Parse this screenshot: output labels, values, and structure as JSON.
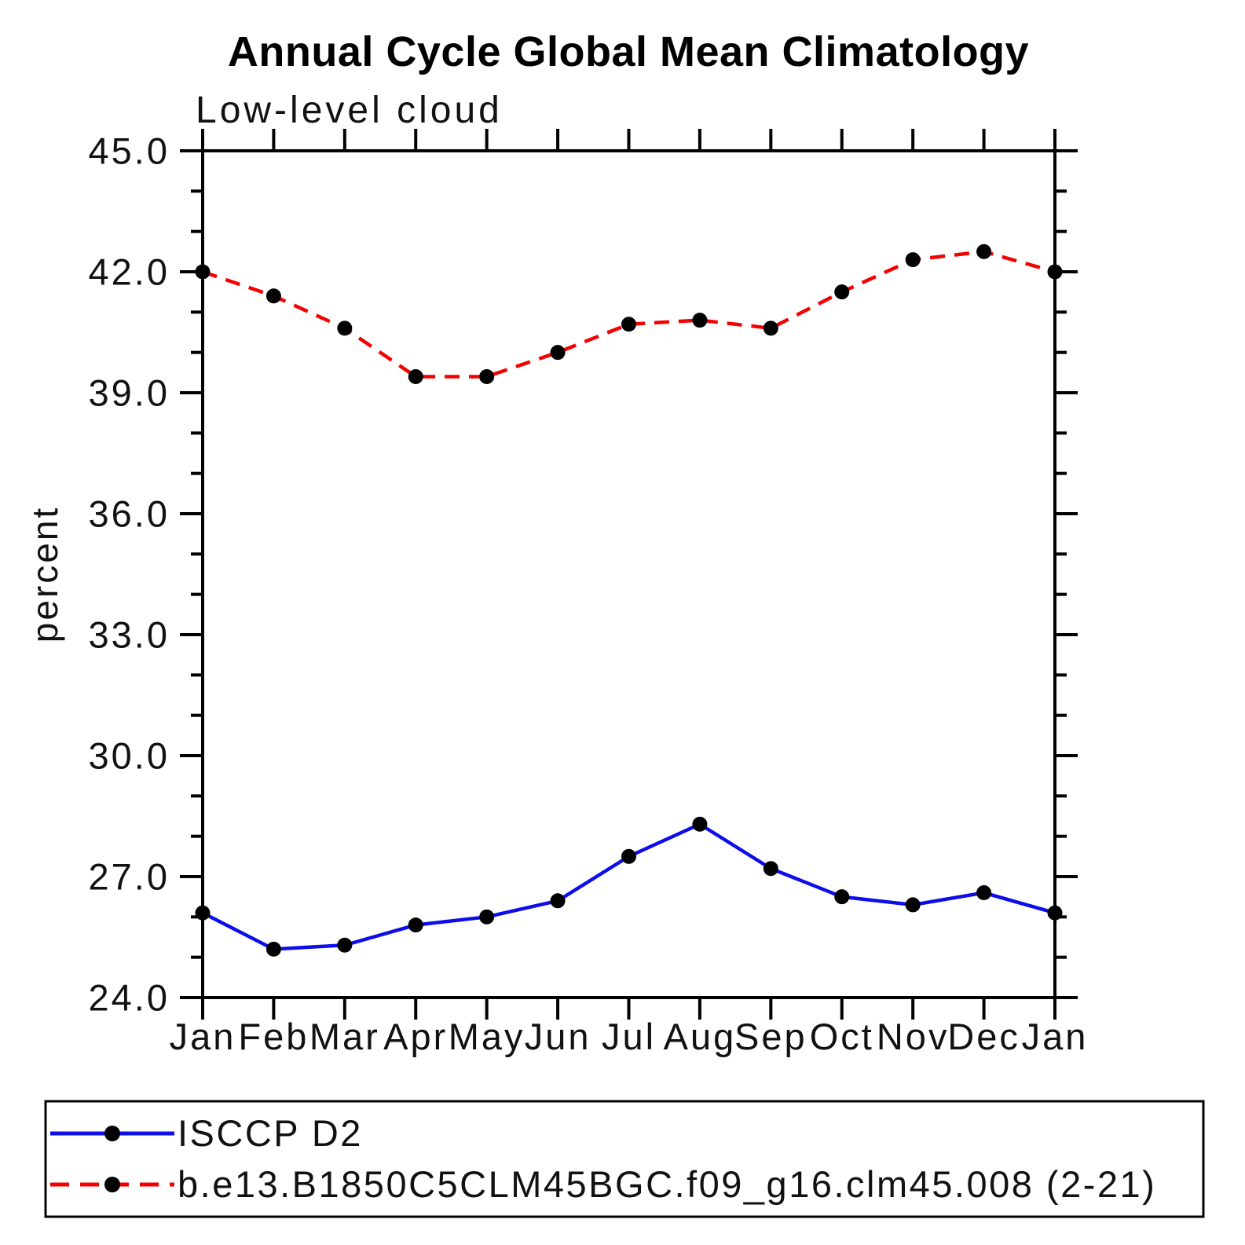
{
  "chart_data": {
    "type": "line",
    "title": "Annual Cycle Global Mean Climatology",
    "subtitle": "Low-level cloud",
    "ylabel": "percent",
    "xlabel": "",
    "x_categories": [
      "Jan",
      "Feb",
      "Mar",
      "Apr",
      "May",
      "Jun",
      "Jul",
      "Aug",
      "Sep",
      "Oct",
      "Nov",
      "Dec",
      "Jan"
    ],
    "ylim": [
      24.0,
      45.0
    ],
    "y_major_ticks": [
      24.0,
      27.0,
      30.0,
      33.0,
      36.0,
      39.0,
      42.0,
      45.0
    ],
    "y_major_tick_labels": [
      "24.0",
      "27.0",
      "30.0",
      "33.0",
      "36.0",
      "39.0",
      "42.0",
      "45.0"
    ],
    "y_minor_tick_interval": 1.0,
    "grid": false,
    "legend_position": "bottom-box",
    "marker": "filled-circle",
    "marker_color": "#000000",
    "axis_color": "#000000",
    "series": [
      {
        "name": "ISCCP D2",
        "color": "#0d0dea",
        "line_style": "solid",
        "values": [
          26.1,
          25.2,
          25.3,
          25.8,
          26.0,
          26.4,
          27.5,
          28.3,
          27.2,
          26.5,
          26.3,
          26.6,
          26.1
        ]
      },
      {
        "name": "b.e13.B1850C5CLM45BGC.f09_g16.clm45.008 (2-21)",
        "color": "#f40000",
        "line_style": "dashed",
        "values": [
          42.0,
          41.4,
          40.6,
          39.4,
          39.4,
          40.0,
          40.7,
          40.8,
          40.6,
          41.5,
          42.3,
          42.5,
          42.0
        ]
      }
    ]
  }
}
